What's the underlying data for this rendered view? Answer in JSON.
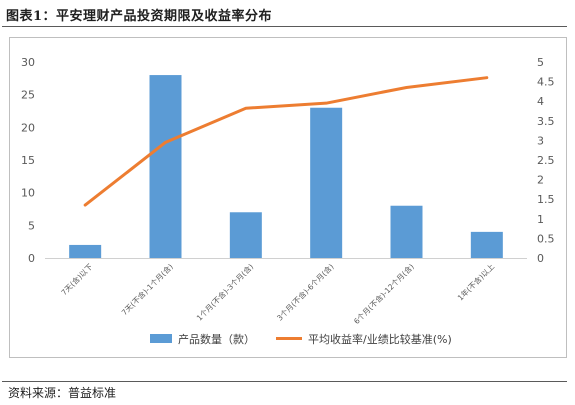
{
  "figure": {
    "title": "图表1：平安理财产品投资期限及收益率分布",
    "source": "资料来源：普益标准"
  },
  "chart_data": {
    "type": "bar+line",
    "categories": [
      "7天(含)以下",
      "7天(不含)-1个月(含)",
      "1个月(不含)-3个月(含)",
      "3个月(不含)-6个月(含)",
      "6个月(不含)-12个月(含)",
      "1年(不含)以上"
    ],
    "series": [
      {
        "name": "产品数量（款）",
        "type": "bar",
        "axis": "left",
        "color": "#5b9bd5",
        "values": [
          2,
          28,
          7,
          23,
          8,
          4
        ]
      },
      {
        "name": "平均收益率/业绩比较基准(%)",
        "type": "line",
        "axis": "right",
        "color": "#ed7d31",
        "values": [
          1.35,
          2.95,
          3.82,
          3.95,
          4.35,
          4.6
        ]
      }
    ],
    "y_left": {
      "min": 0,
      "max": 30,
      "ticks": [
        "0",
        "5",
        "10",
        "15",
        "20",
        "25",
        "30"
      ]
    },
    "y_right": {
      "min": 0,
      "max": 5,
      "ticks": [
        "0",
        "0.5",
        "1",
        "1.5",
        "2",
        "2.5",
        "3",
        "3.5",
        "4",
        "4.5",
        "5"
      ]
    },
    "grid": false,
    "legend_position": "bottom"
  }
}
